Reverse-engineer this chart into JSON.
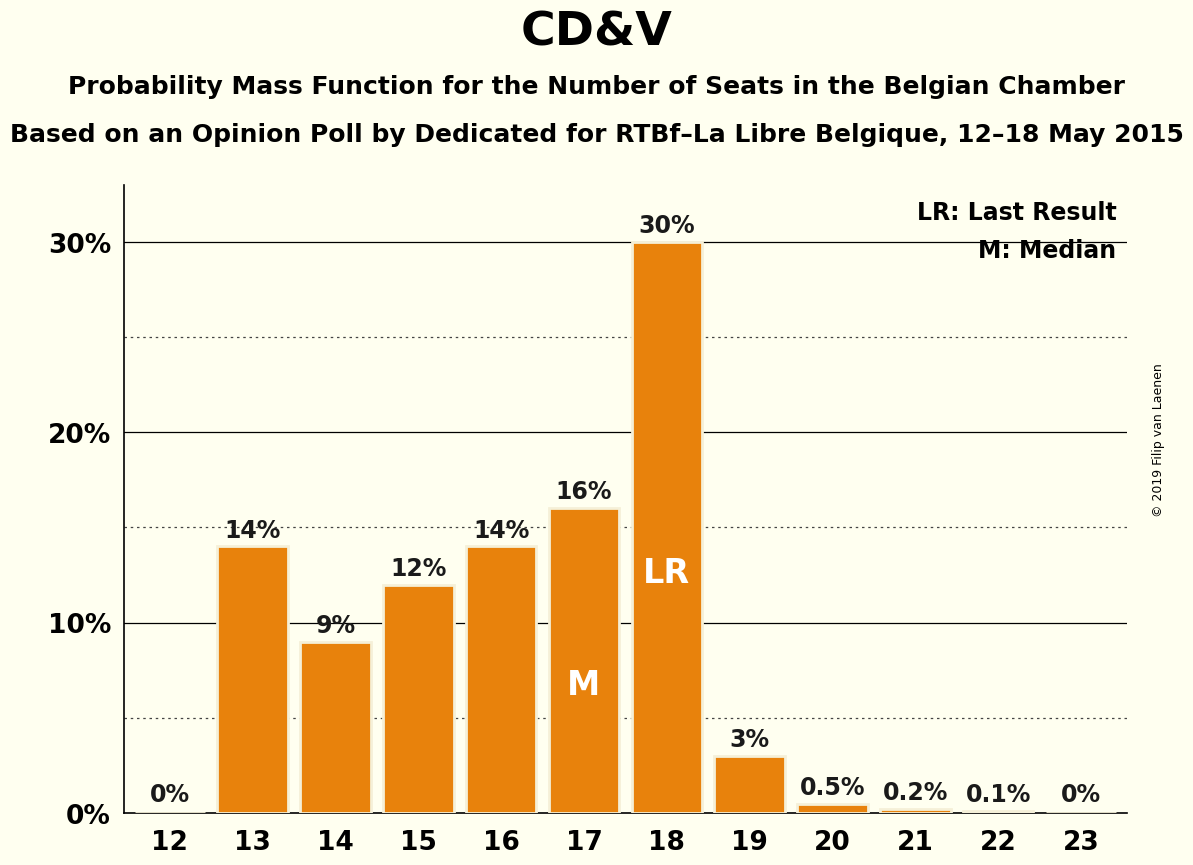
{
  "title": "CD&V",
  "subtitle1": "Probability Mass Function for the Number of Seats in the Belgian Chamber",
  "subtitle2": "Based on an Opinion Poll by Dedicated for RTBf–La Libre Belgique, 12–18 May 2015",
  "watermark": "© 2019 Filip van Laenen",
  "categories": [
    12,
    13,
    14,
    15,
    16,
    17,
    18,
    19,
    20,
    21,
    22,
    23
  ],
  "values": [
    0.0,
    14.0,
    9.0,
    12.0,
    14.0,
    16.0,
    30.0,
    3.0,
    0.5,
    0.2,
    0.1,
    0.0
  ],
  "bar_color": "#E8820C",
  "bar_edge_color": "#F5F0D8",
  "background_color": "#FFFFF0",
  "label_texts": [
    "0%",
    "14%",
    "9%",
    "12%",
    "14%",
    "16%",
    "30%",
    "3%",
    "0.5%",
    "0.2%",
    "0.1%",
    "0%"
  ],
  "label_color": "#1a1a1a",
  "LR_bar": 18,
  "LR_label": "LR",
  "LR_label_color": "#FFFFFF",
  "M_bar": 17,
  "M_label": "M",
  "M_label_color": "#FFFFFF",
  "legend_LR": "LR: Last Result",
  "legend_M": "M: Median",
  "solid_gridlines": [
    10,
    20,
    30
  ],
  "dotted_gridlines": [
    5,
    15,
    25
  ],
  "ylim": [
    0,
    33
  ],
  "ytick_positions": [
    0,
    10,
    20,
    30
  ],
  "ytick_labels": [
    "0%",
    "10%",
    "20%",
    "30%"
  ],
  "title_fontsize": 34,
  "subtitle_fontsize": 18,
  "bar_label_fontsize": 17,
  "axis_fontsize": 19,
  "legend_fontsize": 17,
  "inbar_fontsize": 24,
  "watermark_fontsize": 9
}
